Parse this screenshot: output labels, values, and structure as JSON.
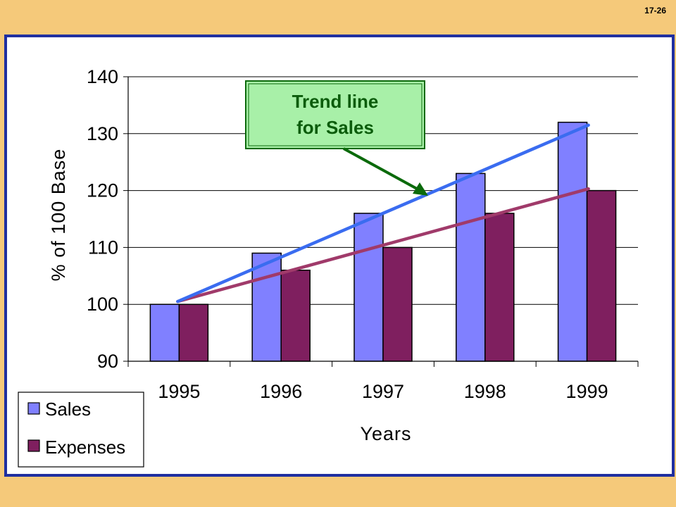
{
  "slide_number": "17-26",
  "colors": {
    "background": "#F5C97A",
    "frame_border": "#1F2FA0",
    "sales": "#8080FF",
    "expenses": "#7F1F5F",
    "sales_trend": "#3A6CF0",
    "expenses_trend": "#A03A6A",
    "callout_fill": "#A8F0A8",
    "callout_text": "#0B5C0B",
    "arrow": "#0B6A0B"
  },
  "callout": {
    "line1": "Trend line",
    "line2": "for Sales"
  },
  "chart_data": {
    "type": "bar",
    "categories": [
      "1995",
      "1996",
      "1997",
      "1998",
      "1999"
    ],
    "series": [
      {
        "name": "Sales",
        "values": [
          100,
          109,
          116,
          123,
          132
        ]
      },
      {
        "name": "Expenses",
        "values": [
          100,
          106,
          110,
          116,
          120
        ]
      }
    ],
    "trend_lines": [
      {
        "series": "Sales",
        "start": 100.5,
        "end": 131.5
      },
      {
        "series": "Expenses",
        "start": 100.5,
        "end": 120.3
      }
    ],
    "xlabel": "Years",
    "ylabel": "% of 100 Base",
    "ylim": [
      90,
      140
    ],
    "yticks": [
      90,
      100,
      110,
      120,
      130,
      140
    ],
    "grid": true,
    "legend_position": "bottom-left"
  }
}
